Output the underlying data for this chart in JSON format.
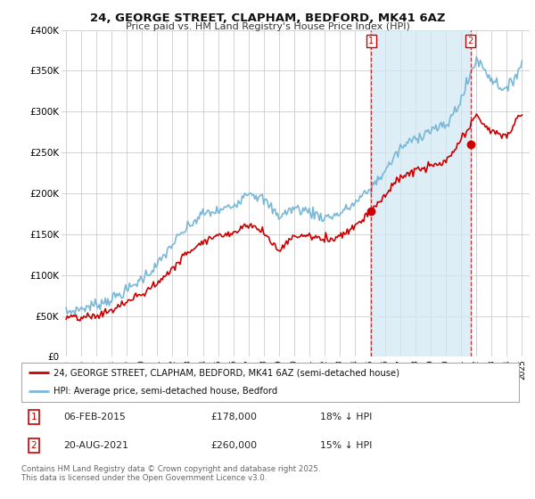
{
  "title": "24, GEORGE STREET, CLAPHAM, BEDFORD, MK41 6AZ",
  "subtitle": "Price paid vs. HM Land Registry's House Price Index (HPI)",
  "ylim": [
    0,
    400000
  ],
  "yticks": [
    0,
    50000,
    100000,
    150000,
    200000,
    250000,
    300000,
    350000,
    400000
  ],
  "ytick_labels": [
    "£0",
    "£50K",
    "£100K",
    "£150K",
    "£200K",
    "£250K",
    "£300K",
    "£350K",
    "£400K"
  ],
  "hpi_color": "#7ab8d8",
  "price_color": "#cc0000",
  "shade_color": "#d0e8f5",
  "background_color": "#ffffff",
  "grid_color": "#cccccc",
  "legend_label_red": "24, GEORGE STREET, CLAPHAM, BEDFORD, MK41 6AZ (semi-detached house)",
  "legend_label_blue": "HPI: Average price, semi-detached house, Bedford",
  "footnote": "Contains HM Land Registry data © Crown copyright and database right 2025.\nThis data is licensed under the Open Government Licence v3.0.",
  "annotation1": {
    "num": "1",
    "date": "06-FEB-2015",
    "price": "£178,000",
    "hpi": "18% ↓ HPI"
  },
  "annotation2": {
    "num": "2",
    "date": "20-AUG-2021",
    "price": "£260,000",
    "hpi": "15% ↓ HPI"
  },
  "marker1_x": 2015.08,
  "marker1_y": 178000,
  "marker2_x": 2021.62,
  "marker2_y": 260000,
  "vline1_x": 2015.08,
  "vline2_x": 2021.62,
  "xmin": 1995.0,
  "xmax": 2025.5
}
